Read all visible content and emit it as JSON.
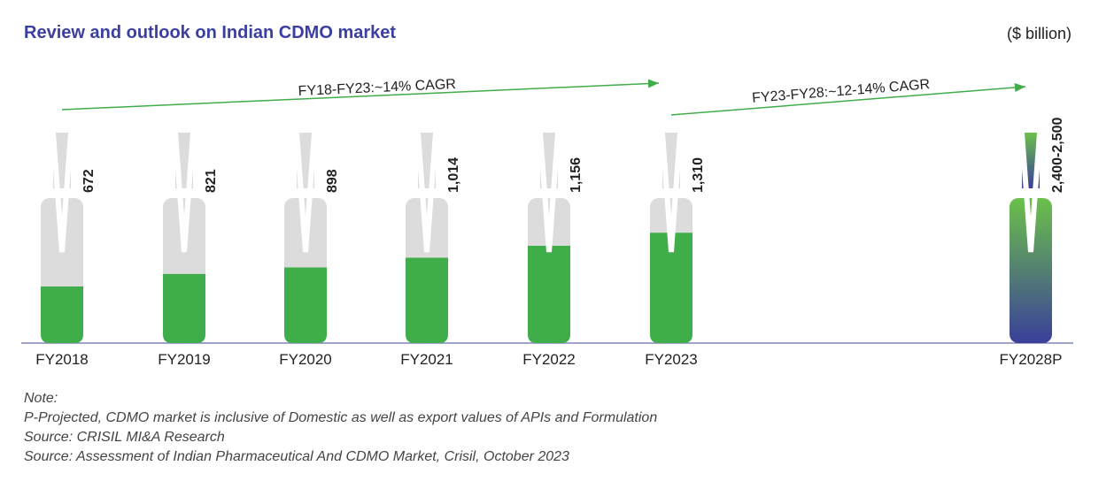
{
  "chart_data": {
    "type": "bar",
    "title": "Review and outlook on Indian CDMO market",
    "unit_label": "($ billion)",
    "categories": [
      "FY2018",
      "FY2019",
      "FY2020",
      "FY2021",
      "FY2022",
      "FY2023",
      "FY2028P"
    ],
    "values": [
      672,
      821,
      898,
      1014,
      1156,
      1310,
      2450
    ],
    "value_labels": [
      "672",
      "821",
      "898",
      "1,014",
      "1,156",
      "1,310",
      "2,400-2,500"
    ],
    "projected": [
      false,
      false,
      false,
      false,
      false,
      false,
      true
    ],
    "annotations": [
      {
        "text": "FY18-FY23:~14% CAGR",
        "from": "FY2018",
        "to": "FY2023"
      },
      {
        "text": "FY23-FY28:~12-14% CAGR",
        "from": "FY2023",
        "to": "FY2028P"
      }
    ],
    "colors": {
      "actual": "#3fad49",
      "background_bar": "#dcdcdc",
      "projected_top": "#6cc04a",
      "projected_bottom": "#3a3f9a",
      "arrow": "#3fad49",
      "baseline": "#8085b8",
      "title": "#3b3fa0"
    }
  },
  "notes": {
    "heading": "Note:",
    "lines": [
      "P-Projected, CDMO market is inclusive of Domestic as well as export values of APIs and Formulation",
      "Source: CRISIL MI&A Research",
      "Source:  Assessment of Indian Pharmaceutical And CDMO Market, Crisil, October 2023"
    ]
  }
}
